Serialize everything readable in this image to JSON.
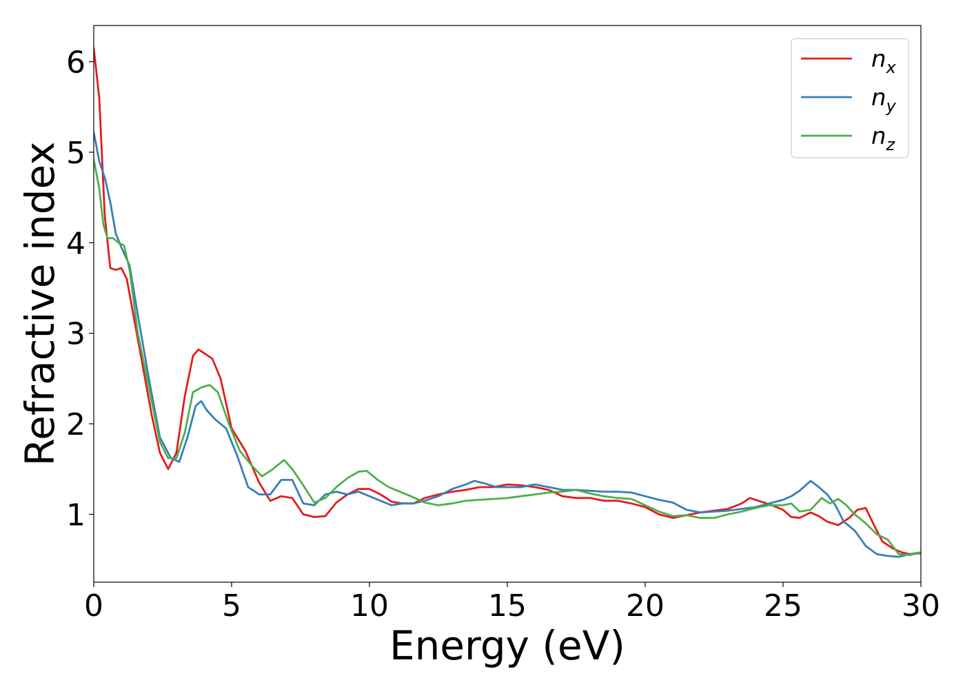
{
  "chart_data": {
    "type": "line",
    "title": "",
    "xlabel": "Energy (eV)",
    "ylabel": "Refractive index",
    "xlim": [
      0,
      30
    ],
    "ylim": [
      0.25,
      6.4
    ],
    "xticks": [
      0,
      5,
      10,
      15,
      20,
      25,
      30
    ],
    "yticks": [
      1,
      2,
      3,
      4,
      5,
      6
    ],
    "grid": false,
    "legend_position": "top-right",
    "series": [
      {
        "name": "n",
        "subscript": "x",
        "color": "#e41a1c",
        "x": [
          0,
          0.2,
          0.4,
          0.6,
          0.8,
          1.0,
          1.2,
          1.5,
          1.8,
          2.1,
          2.4,
          2.7,
          3.0,
          3.3,
          3.6,
          3.8,
          4.0,
          4.3,
          4.6,
          5.0,
          5.5,
          6.0,
          6.4,
          6.8,
          7.2,
          7.6,
          8.0,
          8.4,
          8.8,
          9.2,
          9.6,
          10.0,
          10.4,
          10.8,
          11.2,
          11.6,
          12.0,
          12.5,
          13.0,
          13.5,
          14.0,
          14.5,
          15.0,
          15.5,
          16.0,
          16.5,
          17.0,
          17.5,
          18.0,
          18.5,
          19.0,
          19.5,
          20.0,
          20.5,
          21.0,
          21.5,
          22.0,
          22.5,
          23.0,
          23.5,
          23.8,
          24.2,
          24.6,
          25.0,
          25.3,
          25.6,
          26.0,
          26.3,
          26.6,
          27.0,
          27.4,
          27.7,
          28.0,
          28.3,
          28.6,
          29.0,
          29.3,
          29.6,
          30.0
        ],
        "y": [
          6.15,
          5.6,
          4.3,
          3.72,
          3.7,
          3.72,
          3.6,
          3.1,
          2.6,
          2.1,
          1.68,
          1.5,
          1.68,
          2.3,
          2.75,
          2.82,
          2.78,
          2.72,
          2.5,
          1.95,
          1.7,
          1.35,
          1.15,
          1.2,
          1.18,
          1.0,
          0.97,
          0.98,
          1.13,
          1.22,
          1.28,
          1.28,
          1.22,
          1.14,
          1.12,
          1.12,
          1.18,
          1.22,
          1.25,
          1.27,
          1.3,
          1.3,
          1.33,
          1.32,
          1.3,
          1.27,
          1.2,
          1.18,
          1.18,
          1.15,
          1.15,
          1.12,
          1.08,
          1.0,
          0.96,
          0.99,
          1.02,
          1.04,
          1.06,
          1.12,
          1.18,
          1.14,
          1.1,
          1.05,
          0.97,
          0.96,
          1.02,
          0.98,
          0.92,
          0.88,
          0.96,
          1.05,
          1.07,
          0.88,
          0.7,
          0.62,
          0.58,
          0.56,
          0.57
        ]
      },
      {
        "name": "n",
        "subscript": "y",
        "color": "#377eb8",
        "x": [
          0,
          0.2,
          0.4,
          0.6,
          0.8,
          1.0,
          1.3,
          1.6,
          2.0,
          2.4,
          2.8,
          3.1,
          3.4,
          3.7,
          3.9,
          4.1,
          4.4,
          4.8,
          5.2,
          5.6,
          6.0,
          6.4,
          6.8,
          7.2,
          7.6,
          8.0,
          8.4,
          8.8,
          9.2,
          9.6,
          10.0,
          10.4,
          10.8,
          11.2,
          11.6,
          12.0,
          12.5,
          13.0,
          13.5,
          13.8,
          14.2,
          14.6,
          15.0,
          15.5,
          16.0,
          16.5,
          17.0,
          17.5,
          18.0,
          18.5,
          19.0,
          19.5,
          20.0,
          20.5,
          21.0,
          21.5,
          22.0,
          22.5,
          23.0,
          23.5,
          24.0,
          24.5,
          25.0,
          25.3,
          25.6,
          26.0,
          26.3,
          26.6,
          26.9,
          27.2,
          27.6,
          28.0,
          28.4,
          28.8,
          29.2,
          29.6,
          30.0
        ],
        "y": [
          5.22,
          4.9,
          4.72,
          4.45,
          4.1,
          3.95,
          3.75,
          3.2,
          2.5,
          1.85,
          1.62,
          1.58,
          1.85,
          2.2,
          2.25,
          2.15,
          2.05,
          1.95,
          1.65,
          1.3,
          1.22,
          1.22,
          1.38,
          1.38,
          1.12,
          1.1,
          1.22,
          1.25,
          1.22,
          1.25,
          1.2,
          1.15,
          1.1,
          1.12,
          1.12,
          1.15,
          1.2,
          1.28,
          1.33,
          1.37,
          1.34,
          1.3,
          1.3,
          1.3,
          1.33,
          1.3,
          1.27,
          1.27,
          1.26,
          1.25,
          1.25,
          1.24,
          1.2,
          1.16,
          1.13,
          1.05,
          1.02,
          1.03,
          1.04,
          1.06,
          1.08,
          1.12,
          1.16,
          1.2,
          1.26,
          1.37,
          1.3,
          1.22,
          1.1,
          0.92,
          0.82,
          0.65,
          0.56,
          0.54,
          0.53,
          0.56,
          0.58
        ]
      },
      {
        "name": "n",
        "subscript": "z",
        "color": "#4daf4a",
        "x": [
          0,
          0.2,
          0.35,
          0.5,
          0.7,
          0.9,
          1.1,
          1.3,
          1.6,
          2.0,
          2.4,
          2.7,
          3.0,
          3.3,
          3.6,
          3.9,
          4.2,
          4.5,
          4.9,
          5.3,
          5.7,
          6.1,
          6.5,
          6.9,
          7.2,
          7.6,
          8.0,
          8.4,
          8.8,
          9.2,
          9.6,
          9.9,
          10.3,
          10.7,
          11.1,
          11.5,
          12.0,
          12.5,
          13.0,
          13.5,
          14.0,
          14.5,
          15.0,
          15.5,
          16.0,
          16.5,
          17.0,
          17.5,
          18.0,
          18.5,
          19.0,
          19.5,
          20.0,
          20.5,
          21.0,
          21.5,
          22.0,
          22.5,
          23.0,
          23.5,
          24.0,
          24.5,
          25.0,
          25.3,
          25.6,
          26.0,
          26.4,
          26.7,
          27.0,
          27.3,
          27.6,
          28.0,
          28.4,
          28.8,
          29.2,
          29.6,
          30.0
        ],
        "y": [
          4.92,
          4.6,
          4.2,
          4.05,
          4.05,
          4.0,
          3.97,
          3.7,
          3.0,
          2.4,
          1.8,
          1.62,
          1.62,
          1.9,
          2.35,
          2.4,
          2.43,
          2.35,
          2.0,
          1.7,
          1.55,
          1.42,
          1.5,
          1.6,
          1.5,
          1.32,
          1.13,
          1.18,
          1.3,
          1.4,
          1.47,
          1.48,
          1.38,
          1.3,
          1.25,
          1.2,
          1.13,
          1.1,
          1.12,
          1.15,
          1.16,
          1.17,
          1.18,
          1.2,
          1.22,
          1.24,
          1.25,
          1.27,
          1.23,
          1.2,
          1.18,
          1.17,
          1.1,
          1.03,
          0.98,
          0.99,
          0.96,
          0.96,
          1.0,
          1.03,
          1.07,
          1.1,
          1.1,
          1.12,
          1.03,
          1.05,
          1.18,
          1.12,
          1.17,
          1.1,
          1.0,
          0.9,
          0.78,
          0.72,
          0.56,
          0.55,
          0.58
        ]
      }
    ]
  }
}
